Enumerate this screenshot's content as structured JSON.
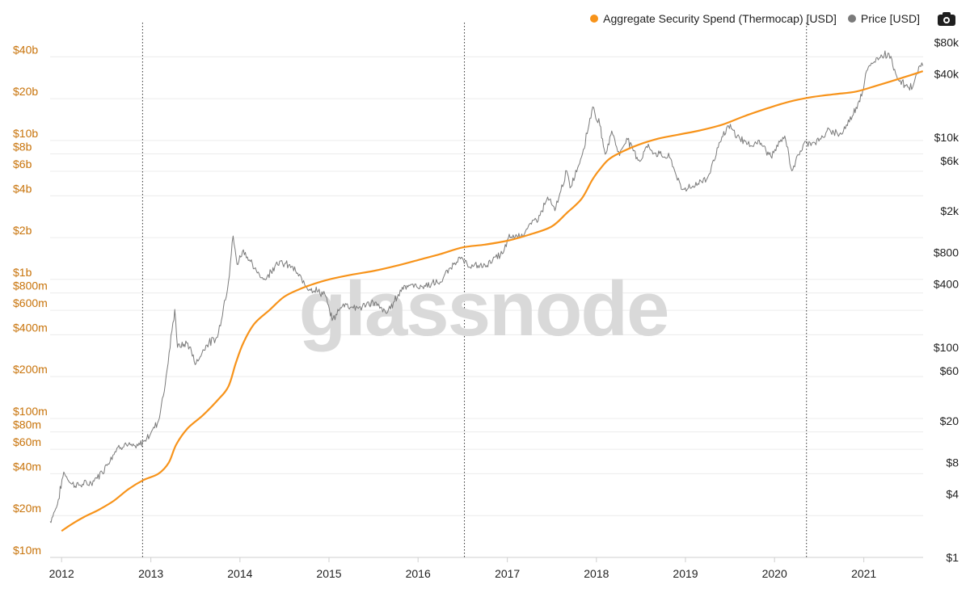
{
  "legend": {
    "items": [
      {
        "label": "Aggregate Security Spend (Thermocap) [USD]",
        "color": "#f7931a"
      },
      {
        "label": "Price [USD]",
        "color": "#7a7a7a"
      }
    ],
    "export_icon": "camera-icon"
  },
  "watermark": "glassnode",
  "chart_data": {
    "type": "line",
    "title": "",
    "xlabel": "",
    "ylabel": "",
    "legend_position": "top-right",
    "grid": {
      "horizontal": true,
      "vertical": false
    },
    "x_axis": {
      "range": [
        "2011-11-15",
        "2021-09-01"
      ],
      "tick_labels": [
        "2012",
        "2013",
        "2014",
        "2015",
        "2016",
        "2017",
        "2018",
        "2019",
        "2020",
        "2021"
      ]
    },
    "y_left": {
      "scale": "log",
      "range": [
        10000000,
        60000000000
      ],
      "ticks": [
        {
          "value": 10000000,
          "label": "$10m"
        },
        {
          "value": 20000000,
          "label": "$20m"
        },
        {
          "value": 40000000,
          "label": "$40m"
        },
        {
          "value": 60000000,
          "label": "$60m"
        },
        {
          "value": 80000000,
          "label": "$80m"
        },
        {
          "value": 100000000,
          "label": "$100m"
        },
        {
          "value": 200000000,
          "label": "$200m"
        },
        {
          "value": 400000000,
          "label": "$400m"
        },
        {
          "value": 600000000,
          "label": "$600m"
        },
        {
          "value": 800000000,
          "label": "$800m"
        },
        {
          "value": 1000000000,
          "label": "$1b"
        },
        {
          "value": 2000000000,
          "label": "$2b"
        },
        {
          "value": 4000000000,
          "label": "$4b"
        },
        {
          "value": 6000000000,
          "label": "$6b"
        },
        {
          "value": 8000000000,
          "label": "$8b"
        },
        {
          "value": 10000000000,
          "label": "$10b"
        },
        {
          "value": 20000000000,
          "label": "$20b"
        },
        {
          "value": 40000000000,
          "label": "$40b"
        }
      ]
    },
    "y_right": {
      "scale": "log",
      "range": [
        1,
        100000
      ],
      "ticks": [
        {
          "value": 1,
          "label": "$1"
        },
        {
          "value": 4,
          "label": "$4"
        },
        {
          "value": 8,
          "label": "$8"
        },
        {
          "value": 20,
          "label": "$20"
        },
        {
          "value": 60,
          "label": "$60"
        },
        {
          "value": 100,
          "label": "$100"
        },
        {
          "value": 400,
          "label": "$400"
        },
        {
          "value": 800,
          "label": "$800"
        },
        {
          "value": 2000,
          "label": "$2k"
        },
        {
          "value": 6000,
          "label": "$6k"
        },
        {
          "value": 10000,
          "label": "$10k"
        },
        {
          "value": 40000,
          "label": "$40k"
        },
        {
          "value": 80000,
          "label": "$80k"
        }
      ]
    },
    "vertical_markers": [
      "2012-11-28",
      "2016-07-09",
      "2020-05-11"
    ],
    "series": [
      {
        "name": "Aggregate Security Spend (Thermocap) [USD]",
        "axis": "left",
        "color": "#f7931a",
        "points": [
          [
            "2012-01-01",
            15500000
          ],
          [
            "2012-02-15",
            17500000
          ],
          [
            "2012-04-01",
            19500000
          ],
          [
            "2012-06-01",
            22000000
          ],
          [
            "2012-08-01",
            25500000
          ],
          [
            "2012-10-01",
            31000000
          ],
          [
            "2012-12-01",
            36000000
          ],
          [
            "2013-02-01",
            40000000
          ],
          [
            "2013-03-15",
            48000000
          ],
          [
            "2013-04-15",
            65000000
          ],
          [
            "2013-06-01",
            85000000
          ],
          [
            "2013-08-01",
            105000000
          ],
          [
            "2013-10-01",
            135000000
          ],
          [
            "2013-11-15",
            170000000
          ],
          [
            "2013-12-15",
            250000000
          ],
          [
            "2014-01-15",
            350000000
          ],
          [
            "2014-03-01",
            480000000
          ],
          [
            "2014-05-01",
            600000000
          ],
          [
            "2014-07-01",
            750000000
          ],
          [
            "2014-09-01",
            850000000
          ],
          [
            "2014-11-01",
            930000000
          ],
          [
            "2015-01-01",
            1000000000
          ],
          [
            "2015-04-01",
            1080000000
          ],
          [
            "2015-07-01",
            1150000000
          ],
          [
            "2015-10-01",
            1250000000
          ],
          [
            "2016-01-01",
            1380000000
          ],
          [
            "2016-04-01",
            1520000000
          ],
          [
            "2016-07-01",
            1700000000
          ],
          [
            "2016-10-01",
            1780000000
          ],
          [
            "2017-01-01",
            1900000000
          ],
          [
            "2017-04-01",
            2100000000
          ],
          [
            "2017-07-01",
            2400000000
          ],
          [
            "2017-09-01",
            3000000000
          ],
          [
            "2017-11-01",
            3800000000
          ],
          [
            "2017-12-15",
            5200000000
          ],
          [
            "2018-01-15",
            6200000000
          ],
          [
            "2018-03-01",
            7500000000
          ],
          [
            "2018-06-01",
            9000000000
          ],
          [
            "2018-09-01",
            10200000000
          ],
          [
            "2018-12-01",
            11000000000
          ],
          [
            "2019-03-01",
            11800000000
          ],
          [
            "2019-06-01",
            13000000000
          ],
          [
            "2019-09-01",
            15000000000
          ],
          [
            "2019-12-01",
            17000000000
          ],
          [
            "2020-03-01",
            19000000000
          ],
          [
            "2020-06-01",
            20500000000
          ],
          [
            "2020-09-01",
            21500000000
          ],
          [
            "2020-12-01",
            22500000000
          ],
          [
            "2021-03-01",
            25000000000
          ],
          [
            "2021-06-01",
            28000000000
          ],
          [
            "2021-08-31",
            31500000000
          ]
        ]
      },
      {
        "name": "Price [USD]",
        "axis": "right",
        "color": "#7a7a7a",
        "points": [
          [
            "2011-11-15",
            2.2
          ],
          [
            "2011-12-15",
            3.2
          ],
          [
            "2012-01-10",
            6.5
          ],
          [
            "2012-02-10",
            5.0
          ],
          [
            "2012-03-15",
            4.9
          ],
          [
            "2012-05-01",
            5.1
          ],
          [
            "2012-06-15",
            6.5
          ],
          [
            "2012-08-15",
            11.0
          ],
          [
            "2012-09-15",
            12.0
          ],
          [
            "2012-11-01",
            11.0
          ],
          [
            "2012-12-15",
            13.5
          ],
          [
            "2013-02-01",
            20.0
          ],
          [
            "2013-03-01",
            45.0
          ],
          [
            "2013-04-09",
            230.0
          ],
          [
            "2013-04-20",
            100.0
          ],
          [
            "2013-06-01",
            110.0
          ],
          [
            "2013-07-05",
            70.0
          ],
          [
            "2013-08-15",
            105.0
          ],
          [
            "2013-10-01",
            125.0
          ],
          [
            "2013-11-15",
            420.0
          ],
          [
            "2013-12-04",
            1150.0
          ],
          [
            "2013-12-20",
            620.0
          ],
          [
            "2014-01-15",
            850.0
          ],
          [
            "2014-03-01",
            560.0
          ],
          [
            "2014-04-15",
            440.0
          ],
          [
            "2014-06-01",
            650.0
          ],
          [
            "2014-08-01",
            590.0
          ],
          [
            "2014-10-01",
            380.0
          ],
          [
            "2014-12-15",
            320.0
          ],
          [
            "2015-01-14",
            180.0
          ],
          [
            "2015-03-01",
            260.0
          ],
          [
            "2015-05-01",
            235.0
          ],
          [
            "2015-07-01",
            270.0
          ],
          [
            "2015-08-25",
            210.0
          ],
          [
            "2015-11-05",
            390.0
          ],
          [
            "2016-01-15",
            380.0
          ],
          [
            "2016-04-01",
            420.0
          ],
          [
            "2016-06-15",
            720.0
          ],
          [
            "2016-08-01",
            580.0
          ],
          [
            "2016-10-01",
            610.0
          ],
          [
            "2016-12-15",
            790.0
          ],
          [
            "2017-01-05",
            1100.0
          ],
          [
            "2017-03-01",
            1200.0
          ],
          [
            "2017-05-15",
            1800.0
          ],
          [
            "2017-06-15",
            2700.0
          ],
          [
            "2017-07-15",
            2000.0
          ],
          [
            "2017-09-01",
            4800.0
          ],
          [
            "2017-09-15",
            3300.0
          ],
          [
            "2017-11-01",
            6500.0
          ],
          [
            "2017-12-17",
            19500.0
          ],
          [
            "2018-01-15",
            13000.0
          ],
          [
            "2018-02-06",
            6900.0
          ],
          [
            "2018-03-05",
            11500.0
          ],
          [
            "2018-04-06",
            6700.0
          ],
          [
            "2018-05-05",
            9800.0
          ],
          [
            "2018-06-28",
            5900.0
          ],
          [
            "2018-07-25",
            8200.0
          ],
          [
            "2018-09-01",
            7100.0
          ],
          [
            "2018-11-01",
            6300.0
          ],
          [
            "2018-12-15",
            3200.0
          ],
          [
            "2019-02-01",
            3450.0
          ],
          [
            "2019-04-01",
            4100.0
          ],
          [
            "2019-05-15",
            8000.0
          ],
          [
            "2019-06-26",
            12900.0
          ],
          [
            "2019-08-01",
            10300.0
          ],
          [
            "2019-09-25",
            8300.0
          ],
          [
            "2019-10-26",
            9400.0
          ],
          [
            "2019-12-17",
            6600.0
          ],
          [
            "2020-02-12",
            10300.0
          ],
          [
            "2020-03-12",
            4800.0
          ],
          [
            "2020-05-01",
            8800.0
          ],
          [
            "2020-07-01",
            9200.0
          ],
          [
            "2020-08-15",
            11800.0
          ],
          [
            "2020-10-01",
            10700.0
          ],
          [
            "2020-11-15",
            16000.0
          ],
          [
            "2020-12-31",
            29000.0
          ],
          [
            "2021-01-08",
            40000.0
          ],
          [
            "2021-02-21",
            57000.0
          ],
          [
            "2021-03-13",
            61000.0
          ],
          [
            "2021-04-14",
            63000.0
          ],
          [
            "2021-05-23",
            35000.0
          ],
          [
            "2021-06-22",
            31000.0
          ],
          [
            "2021-07-20",
            30000.0
          ],
          [
            "2021-08-14",
            47000.0
          ],
          [
            "2021-08-31",
            48000.0
          ]
        ]
      }
    ]
  }
}
